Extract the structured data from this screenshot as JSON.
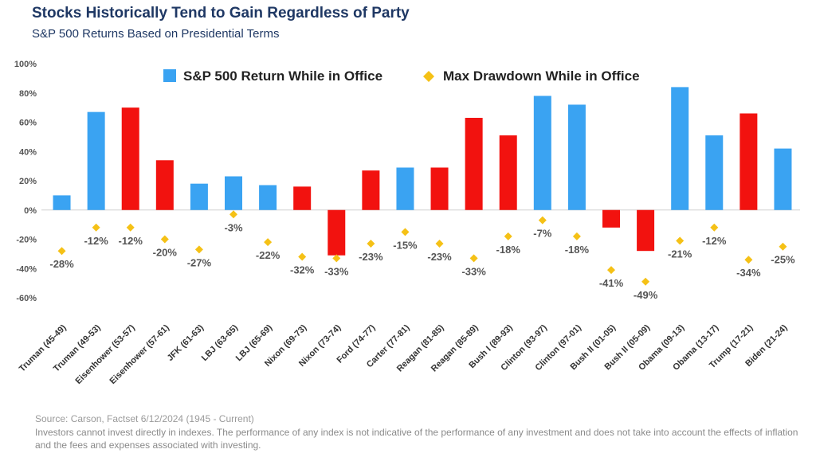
{
  "header": {
    "title": "Stocks Historically Tend to Gain Regardless of Party",
    "subtitle": "S&P 500 Returns Based on Presidential Terms"
  },
  "footer": {
    "source": "Source: Carson, Factset 6/12/2024 (1945 - Current)",
    "disclaimer": "Investors cannot invest directly in indexes. The performance of any index is not indicative of the performance of any investment and does not take into account the effects of inflation and the fees and expenses associated with investing."
  },
  "colors": {
    "democrat": "#3aa3f2",
    "republican": "#f2120f",
    "drawdown": "#f5c116",
    "title": "#1f3864"
  },
  "chart_data": {
    "type": "bar",
    "title": "Stocks Historically Tend to Gain Regardless of Party",
    "subtitle": "S&P 500 Returns Based on Presidential Terms",
    "ylim": [
      -60,
      100
    ],
    "yticks": [
      100,
      80,
      60,
      40,
      20,
      0,
      -20,
      -40,
      -60
    ],
    "ytick_labels": [
      "100%",
      "80%",
      "60%",
      "40%",
      "20%",
      "0%",
      "-20%",
      "-40%",
      "-60%"
    ],
    "grid": false,
    "legend_placement": "top-center",
    "categories": [
      "Truman (45-49)",
      "Truman (49-53)",
      "Eisenhower (53-57)",
      "Eisenhower (57-61)",
      "JFK (61-63)",
      "LBJ (63-65)",
      "LBJ (65-69)",
      "Nixon (69-73)",
      "Nixon (73-74)",
      "Ford (74-77)",
      "Carter (77-81)",
      "Reagan (81-85)",
      "Reagan (85-89)",
      "Bush I (89-93)",
      "Clinton (93-97)",
      "Clinton (97-01)",
      "Bush II (01-05)",
      "Bush II (05-09)",
      "Obama (09-13)",
      "Obama (13-17)",
      "Trump (17-21)",
      "Biden (21-24)"
    ],
    "party": [
      "D",
      "D",
      "R",
      "R",
      "D",
      "D",
      "D",
      "R",
      "R",
      "R",
      "D",
      "R",
      "R",
      "R",
      "D",
      "D",
      "R",
      "R",
      "D",
      "D",
      "R",
      "D"
    ],
    "series": [
      {
        "name": "S&P 500 Return While in Office",
        "kind": "bar",
        "values": [
          10,
          67,
          70,
          34,
          18,
          23,
          17,
          16,
          -31,
          27,
          29,
          29,
          63,
          51,
          78,
          72,
          -12,
          -28,
          84,
          51,
          66,
          42
        ]
      },
      {
        "name": "Max Drawdown While in Office",
        "kind": "marker",
        "values": [
          -28,
          -12,
          -12,
          -20,
          -27,
          -3,
          -22,
          -32,
          -33,
          -23,
          -15,
          -23,
          -33,
          -18,
          -7,
          -18,
          -41,
          -49,
          -21,
          -12,
          -34,
          -25
        ],
        "labels": [
          "-28%",
          "-12%",
          "-12%",
          "-20%",
          "-27%",
          "-3%",
          "-22%",
          "-32%",
          "-33%",
          "-23%",
          "-15%",
          "-23%",
          "-33%",
          "-18%",
          "-7%",
          "-18%",
          "-41%",
          "-49%",
          "-21%",
          "-12%",
          "-34%",
          "-25%"
        ]
      }
    ]
  }
}
